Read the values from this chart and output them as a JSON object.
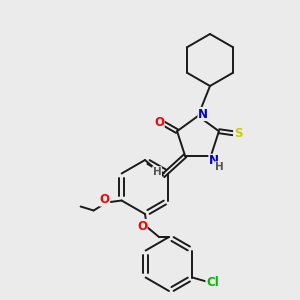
{
  "bg_color": "#ebebeb",
  "bond_color": "#1a1a1a",
  "atom_colors": {
    "O": "#ff0000",
    "N": "#0000cc",
    "S": "#cccc00",
    "Cl": "#00bb00",
    "H": "#555555",
    "C": "#1a1a1a"
  },
  "font_size": 8.5,
  "line_width": 1.4
}
